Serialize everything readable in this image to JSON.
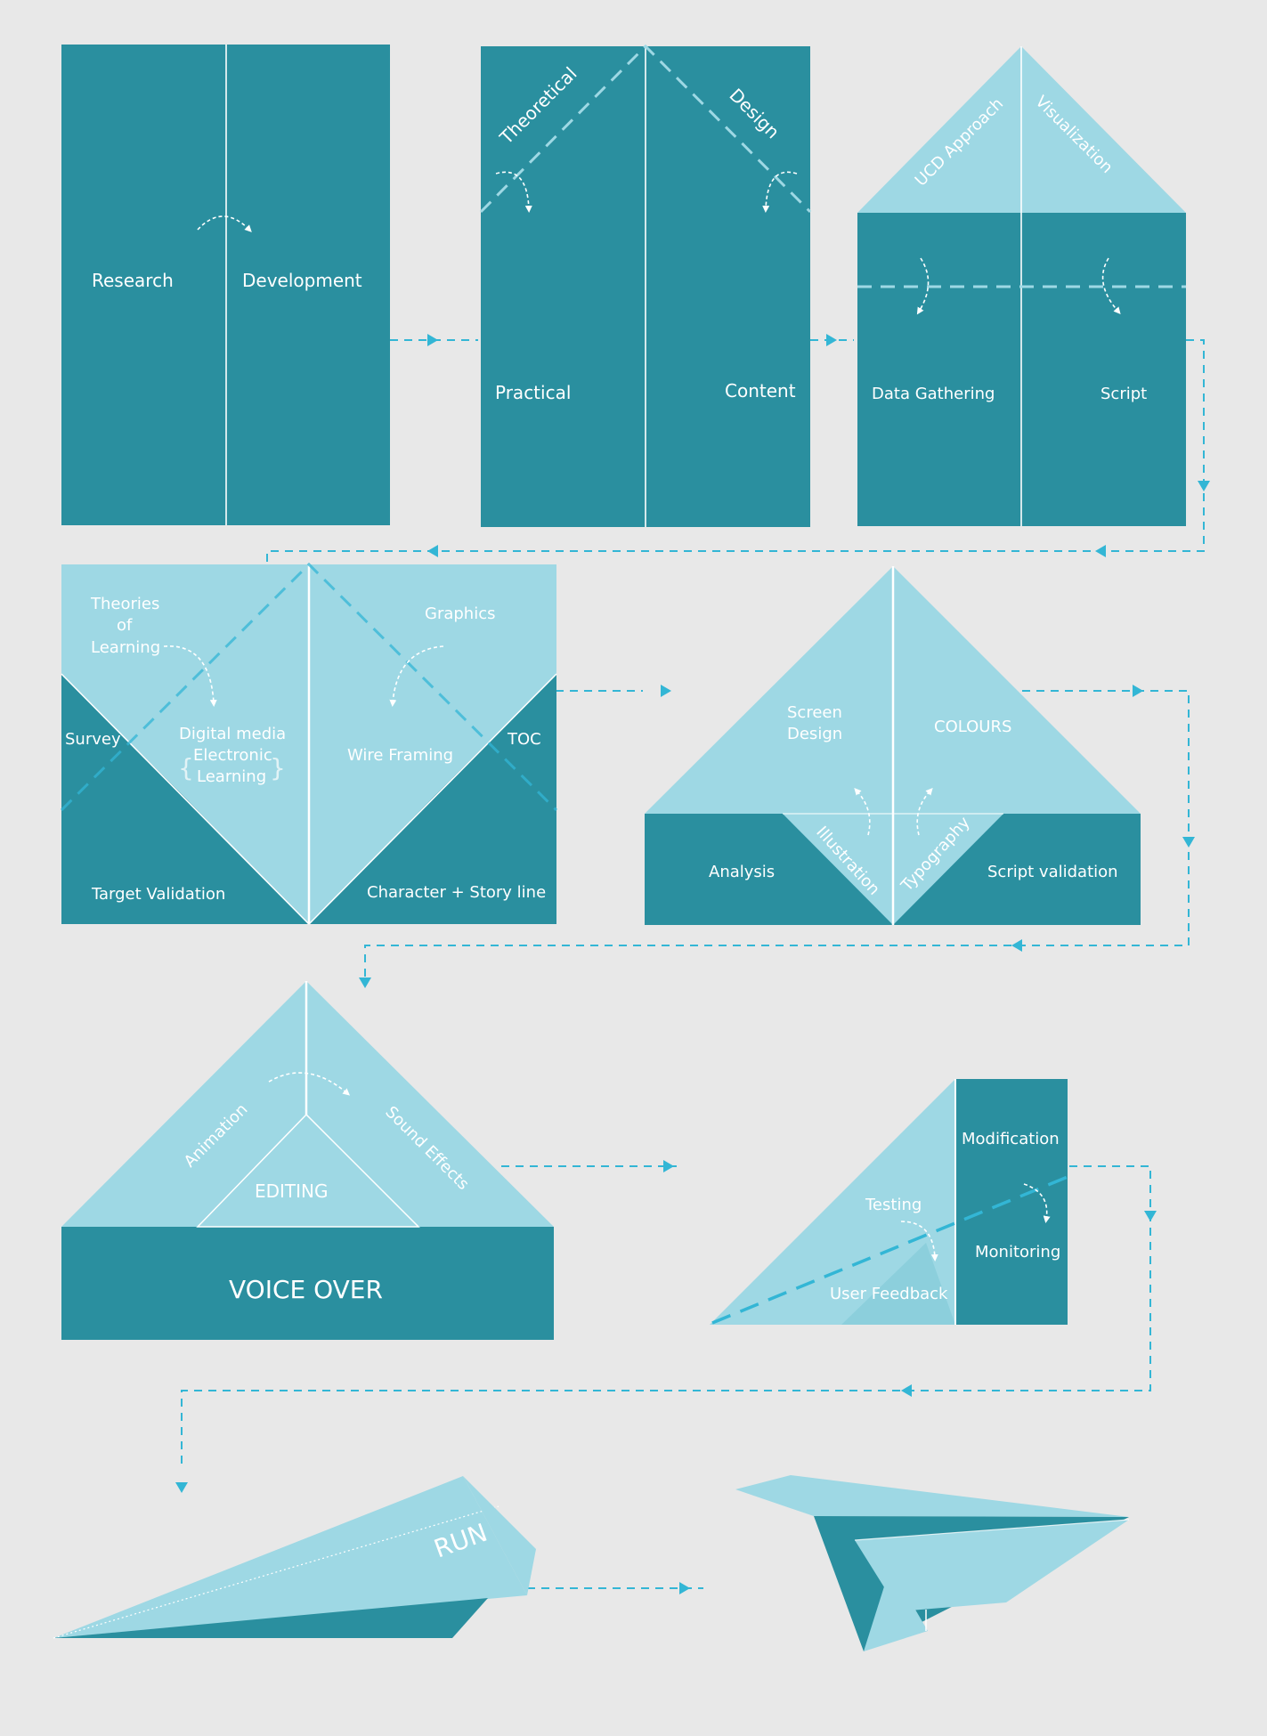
{
  "colors": {
    "background": "#e8e8e8",
    "dark": "#2a8f9f",
    "light": "#9ed8e4",
    "fold_line": "#ffffff",
    "connector": "#33b6d5"
  },
  "step1": {
    "left": "Research",
    "right": "Development"
  },
  "step2": {
    "fold_left": "Theoretical",
    "fold_right": "Design",
    "left": "Practical",
    "right": "Content"
  },
  "step3": {
    "flap_left": "UCD Approach",
    "flap_right": "Visualization",
    "left": "Data Gathering",
    "right": "Script"
  },
  "step4": {
    "theories": [
      "Theories",
      "of",
      "Learning"
    ],
    "graphics": "Graphics",
    "survey": "Survey",
    "digital_media": "Digital media",
    "electronic": "Electronic",
    "learning": "Learning",
    "wire_framing": "Wire Framing",
    "toc": "TOC",
    "target_validation": "Target Validation",
    "character_story": "Character + Story line"
  },
  "step5": {
    "screen_design": [
      "Screen",
      "Design"
    ],
    "colours": "COLOURS",
    "analysis": "Analysis",
    "illustration": "Illustration",
    "typography": "Typography",
    "script_validation": "Script validation"
  },
  "step6": {
    "animation": "Animation",
    "sound_effects": "Sound Effects",
    "editing": "EDITING",
    "voice_over": "VOICE OVER"
  },
  "step7": {
    "modification": "Modification",
    "testing": "Testing",
    "monitoring": "Monitoring",
    "user_feedback": "User Feedback"
  },
  "step8": {
    "run": "RUN"
  }
}
